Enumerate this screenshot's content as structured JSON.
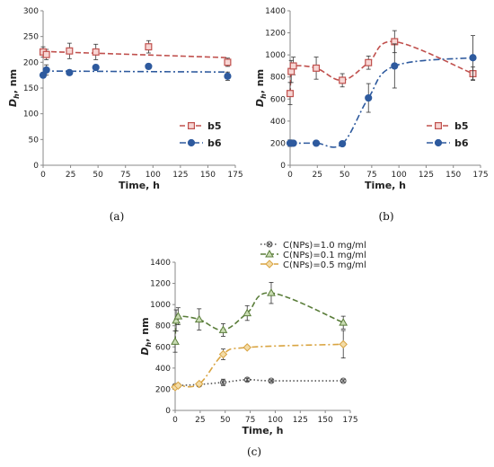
{
  "chart_data": [
    {
      "panel": "(a)",
      "type": "line",
      "xlabel": "Time, h",
      "ylabel": "Dh, nm",
      "xlim": [
        0,
        175
      ],
      "ylim": [
        0,
        300
      ],
      "xticks": [
        0,
        25,
        50,
        75,
        100,
        125,
        150,
        175
      ],
      "yticks": [
        0,
        50,
        100,
        150,
        200,
        250,
        300
      ],
      "legend_position": "bottom-right",
      "series": [
        {
          "name": "b5",
          "color": "#c0504d",
          "marker": "square",
          "trend": {
            "type": "linear",
            "x": [
              0,
              168
            ],
            "y": [
              221,
              209
            ],
            "style": "dashed"
          },
          "points": [
            {
              "x": 0,
              "y": 220,
              "err": 10
            },
            {
              "x": 3,
              "y": 215,
              "err": 10
            },
            {
              "x": 24,
              "y": 222,
              "err": 15
            },
            {
              "x": 48,
              "y": 220,
              "err": 15
            },
            {
              "x": 96,
              "y": 230,
              "err": 12
            },
            {
              "x": 168,
              "y": 200,
              "err": 8
            }
          ]
        },
        {
          "name": "b6",
          "color": "#2e5a9e",
          "marker": "circle",
          "trend": {
            "type": "linear",
            "x": [
              0,
              168
            ],
            "y": [
              183,
              181
            ],
            "style": "dash-dot"
          },
          "points": [
            {
              "x": 0,
              "y": 175,
              "err": 5
            },
            {
              "x": 3,
              "y": 185,
              "err": 10
            },
            {
              "x": 24,
              "y": 180,
              "err": 5
            },
            {
              "x": 48,
              "y": 190,
              "err": 5
            },
            {
              "x": 96,
              "y": 192,
              "err": 5
            },
            {
              "x": 168,
              "y": 173,
              "err": 8
            }
          ]
        }
      ]
    },
    {
      "panel": "(b)",
      "type": "line",
      "xlabel": "Time, h",
      "ylabel": "Dh, nm",
      "xlim": [
        0,
        175
      ],
      "ylim": [
        0,
        1400
      ],
      "xticks": [
        0,
        25,
        50,
        75,
        100,
        125,
        150,
        175
      ],
      "yticks": [
        0,
        200,
        400,
        600,
        800,
        1000,
        1200,
        1400
      ],
      "legend_position": "bottom-right",
      "series": [
        {
          "name": "b5",
          "color": "#c0504d",
          "marker": "square",
          "line_style": "dashed",
          "points": [
            {
              "x": 0,
              "y": 650,
              "err": 100
            },
            {
              "x": 1,
              "y": 850,
              "err": 100
            },
            {
              "x": 3,
              "y": 900,
              "err": 80
            },
            {
              "x": 24,
              "y": 880,
              "err": 100
            },
            {
              "x": 48,
              "y": 770,
              "err": 60
            },
            {
              "x": 72,
              "y": 930,
              "err": 60
            },
            {
              "x": 96,
              "y": 1120,
              "err": 100
            },
            {
              "x": 168,
              "y": 830,
              "err": 60
            }
          ]
        },
        {
          "name": "b6",
          "color": "#2e5a9e",
          "marker": "circle",
          "line_style": "dash-dot",
          "points": [
            {
              "x": 0,
              "y": 200,
              "err": 30
            },
            {
              "x": 3,
              "y": 200,
              "err": 10
            },
            {
              "x": 24,
              "y": 200,
              "err": 10
            },
            {
              "x": 48,
              "y": 195,
              "err": 10
            },
            {
              "x": 72,
              "y": 610,
              "err": 130
            },
            {
              "x": 96,
              "y": 900,
              "err": 200
            },
            {
              "x": 168,
              "y": 975,
              "err": 200
            }
          ]
        }
      ]
    },
    {
      "panel": "(c)",
      "type": "line",
      "xlabel": "Time, h",
      "ylabel": "Dh, nm",
      "xlim": [
        0,
        175
      ],
      "ylim": [
        0,
        1400
      ],
      "xticks": [
        0,
        25,
        50,
        75,
        100,
        125,
        150,
        175
      ],
      "yticks": [
        0,
        200,
        400,
        600,
        800,
        1000,
        1200,
        1400
      ],
      "legend_position": "top",
      "series": [
        {
          "name": "C(NPs)=1.0 mg/ml",
          "color": "#555555",
          "marker": "x",
          "line_style": "dotted",
          "points": [
            {
              "x": 0,
              "y": 230,
              "err": 15
            },
            {
              "x": 3,
              "y": 235,
              "err": 10
            },
            {
              "x": 24,
              "y": 245,
              "err": 15
            },
            {
              "x": 48,
              "y": 265,
              "err": 30
            },
            {
              "x": 72,
              "y": 290,
              "err": 15
            },
            {
              "x": 96,
              "y": 280,
              "err": 10
            },
            {
              "x": 168,
              "y": 280,
              "err": 10
            }
          ]
        },
        {
          "name": "C(NPs)=0.1 mg/ml",
          "color": "#5a7d3a",
          "marker": "triangle",
          "line_style": "dashed",
          "points": [
            {
              "x": 0,
              "y": 650,
              "err": 100
            },
            {
              "x": 1,
              "y": 850,
              "err": 100
            },
            {
              "x": 3,
              "y": 890,
              "err": 80
            },
            {
              "x": 24,
              "y": 860,
              "err": 100
            },
            {
              "x": 48,
              "y": 760,
              "err": 60
            },
            {
              "x": 72,
              "y": 920,
              "err": 70
            },
            {
              "x": 96,
              "y": 1110,
              "err": 100
            },
            {
              "x": 168,
              "y": 830,
              "err": 60
            }
          ]
        },
        {
          "name": "C(NPs)=0.5 mg/ml",
          "color": "#d9a441",
          "marker": "diamond",
          "line_style": "dash-dot",
          "points": [
            {
              "x": 0,
              "y": 220,
              "err": 10
            },
            {
              "x": 3,
              "y": 235,
              "err": 10
            },
            {
              "x": 24,
              "y": 250,
              "err": 15
            },
            {
              "x": 48,
              "y": 530,
              "err": 50
            },
            {
              "x": 72,
              "y": 595,
              "err": 15
            },
            {
              "x": 168,
              "y": 625,
              "err": 130
            }
          ]
        }
      ]
    }
  ]
}
